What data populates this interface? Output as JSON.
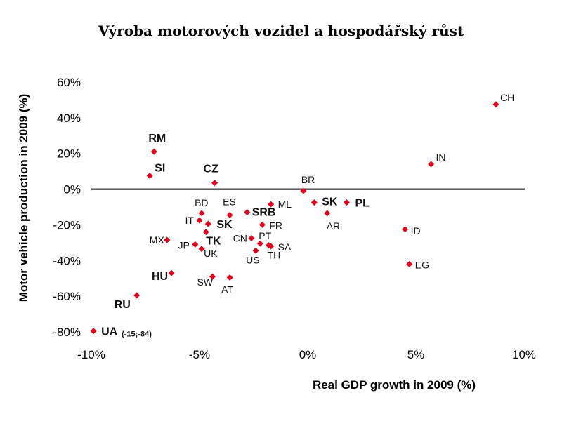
{
  "chart_data": {
    "type": "scatter",
    "title": "Výroba motorových vozidel a hospodářský růst",
    "xlabel": "Real GDP growth in 2009 (%)",
    "ylabel": "Motor vehicle production in 2009 (%)",
    "xlim": [
      -10,
      10
    ],
    "ylim": [
      -80,
      60
    ],
    "x_ticks": [
      -10,
      -5,
      0,
      5,
      10
    ],
    "x_tick_labels": [
      "-10%",
      "-5%",
      "0%",
      "5%",
      "10%"
    ],
    "y_ticks": [
      60,
      40,
      20,
      0,
      -20,
      -40,
      -60,
      -80
    ],
    "y_tick_labels": [
      "60%",
      "40%",
      "20%",
      "0%",
      "-20%",
      "-40%",
      "-60%",
      "-80%"
    ],
    "zero_line": true,
    "grid": false,
    "marker_color": "#e0001b",
    "points": [
      {
        "label": "CH",
        "x": 8.7,
        "y": 47.5,
        "bold": false
      },
      {
        "label": "IN",
        "x": 5.7,
        "y": 14.0,
        "bold": false
      },
      {
        "label": "RM",
        "x": -7.1,
        "y": 21.0,
        "bold": true
      },
      {
        "label": "SI",
        "x": -7.3,
        "y": 7.5,
        "bold": true
      },
      {
        "label": "CZ",
        "x": -4.3,
        "y": 3.5,
        "bold": true
      },
      {
        "label": "BR",
        "x": -0.2,
        "y": -1.0,
        "bold": false
      },
      {
        "label": "SK",
        "x": 0.3,
        "y": -7.5,
        "bold": true
      },
      {
        "label": "PL",
        "x": 1.8,
        "y": -7.5,
        "bold": true
      },
      {
        "label": "ML",
        "x": -1.7,
        "y": -8.5,
        "bold": false
      },
      {
        "label": "AR",
        "x": 0.9,
        "y": -13.5,
        "bold": false
      },
      {
        "label": "BD",
        "x": -4.9,
        "y": -13.5,
        "bold": false
      },
      {
        "label": "ES",
        "x": -3.6,
        "y": -14.5,
        "bold": false
      },
      {
        "label": "SRB",
        "x": -2.8,
        "y": -13.0,
        "bold": true
      },
      {
        "label": "IT",
        "x": -5.0,
        "y": -17.5,
        "bold": false
      },
      {
        "label": "SK",
        "x": -4.6,
        "y": -19.5,
        "bold": true
      },
      {
        "label": "FR",
        "x": -2.1,
        "y": -20.0,
        "bold": false
      },
      {
        "label": "TK",
        "x": -4.7,
        "y": -24.0,
        "bold": true
      },
      {
        "label": "ID",
        "x": 4.5,
        "y": -22.5,
        "bold": false
      },
      {
        "label": "MX",
        "x": -6.5,
        "y": -28.5,
        "bold": false
      },
      {
        "label": "CN",
        "x": -2.6,
        "y": -27.5,
        "bold": false
      },
      {
        "label": "PT",
        "x": -2.2,
        "y": -30.5,
        "bold": false
      },
      {
        "label": "JP",
        "x": -5.2,
        "y": -31.0,
        "bold": false
      },
      {
        "label": "SA",
        "x": -1.7,
        "y": -32.0,
        "bold": false
      },
      {
        "label": "UK",
        "x": -4.9,
        "y": -33.5,
        "bold": false
      },
      {
        "label": "US",
        "x": -2.4,
        "y": -34.5,
        "bold": false
      },
      {
        "label": "TH",
        "x": -1.8,
        "y": -31.5,
        "bold": false
      },
      {
        "label": "EG",
        "x": 4.7,
        "y": -42.0,
        "bold": false
      },
      {
        "label": "HU",
        "x": -6.3,
        "y": -47.0,
        "bold": true
      },
      {
        "label": "SW",
        "x": -4.4,
        "y": -49.0,
        "bold": false
      },
      {
        "label": "AT",
        "x": -3.6,
        "y": -49.5,
        "bold": false
      },
      {
        "label": "RU",
        "x": -7.9,
        "y": -59.5,
        "bold": true
      },
      {
        "label": "UA",
        "x": -9.9,
        "y": -79.5,
        "bold": true,
        "note": "(-15;-84)"
      }
    ]
  }
}
